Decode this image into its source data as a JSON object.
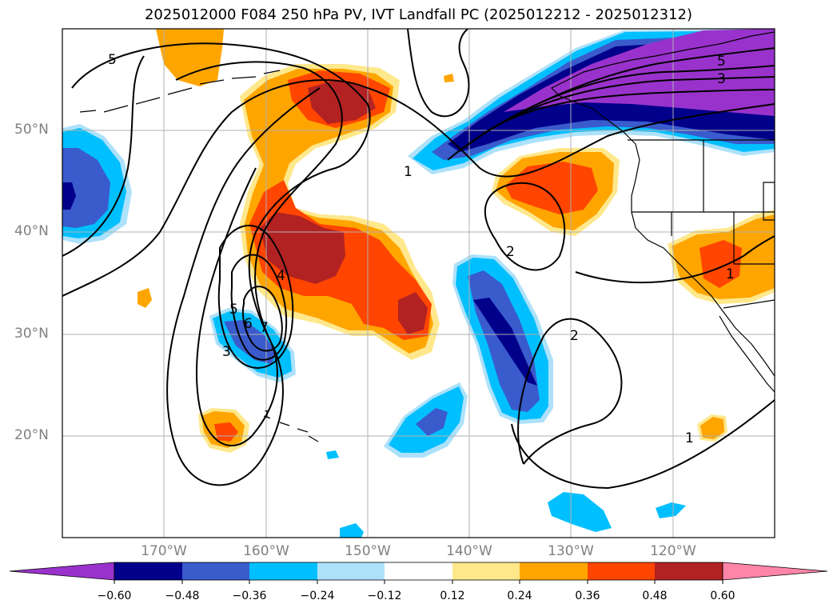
{
  "title": "2025012000 F084 250 hPa PV, IVT Landfall PC (2025012212 - 2025012312)",
  "axes": {
    "lon_labels": [
      "170°W",
      "160°W",
      "150°W",
      "140°W",
      "130°W",
      "120°W"
    ],
    "lat_labels": [
      "50°N",
      "40°N",
      "30°N",
      "20°N"
    ],
    "lon_values": [
      -170,
      -160,
      -150,
      -140,
      -130,
      -120
    ],
    "lat_values": [
      50,
      40,
      30,
      20
    ],
    "lon_range": [
      -180,
      -110
    ],
    "lat_range": [
      10,
      60
    ],
    "grid": true
  },
  "colorbar": {
    "ticks": [
      "−0.60",
      "−0.48",
      "−0.36",
      "−0.24",
      "−0.12",
      "0.12",
      "0.24",
      "0.36",
      "0.48",
      "0.60"
    ],
    "colors": [
      "#9932CC",
      "#00008B",
      "#3A5BCC",
      "#00BFFF",
      "#ADE1FA",
      "#FFFFFF",
      "#FFE88C",
      "#FFA500",
      "#FF4500",
      "#B22222",
      "#FF85A8"
    ]
  },
  "contour_labels": [
    "5",
    "5",
    "3",
    "1",
    "2",
    "2",
    "1",
    "1",
    "4",
    "5",
    "6",
    "7",
    "3",
    "1"
  ]
}
